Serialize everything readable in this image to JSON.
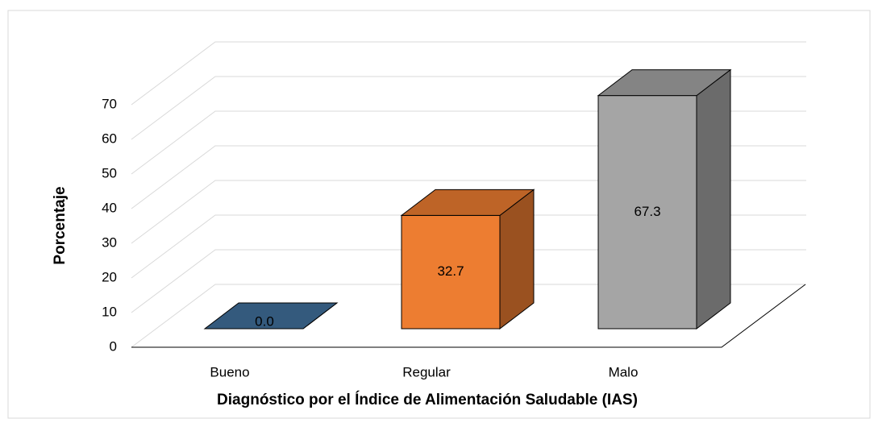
{
  "chart_data": {
    "type": "bar3d",
    "x_label": "Diagnóstico por el Índice de Alimentación Saludable (IAS)",
    "y_label": "Porcentaje",
    "categories": [
      "Bueno",
      "Regular",
      "Malo"
    ],
    "values": [
      0.0,
      32.7,
      67.3
    ],
    "value_labels": [
      "0.0",
      "32.7",
      "67.3"
    ],
    "colors": [
      "#41719c",
      "#ed7d31",
      "#a5a5a5"
    ],
    "ylim": [
      0,
      70
    ],
    "yticks": [
      0,
      10,
      20,
      30,
      40,
      50,
      60,
      70
    ],
    "grid": true
  }
}
